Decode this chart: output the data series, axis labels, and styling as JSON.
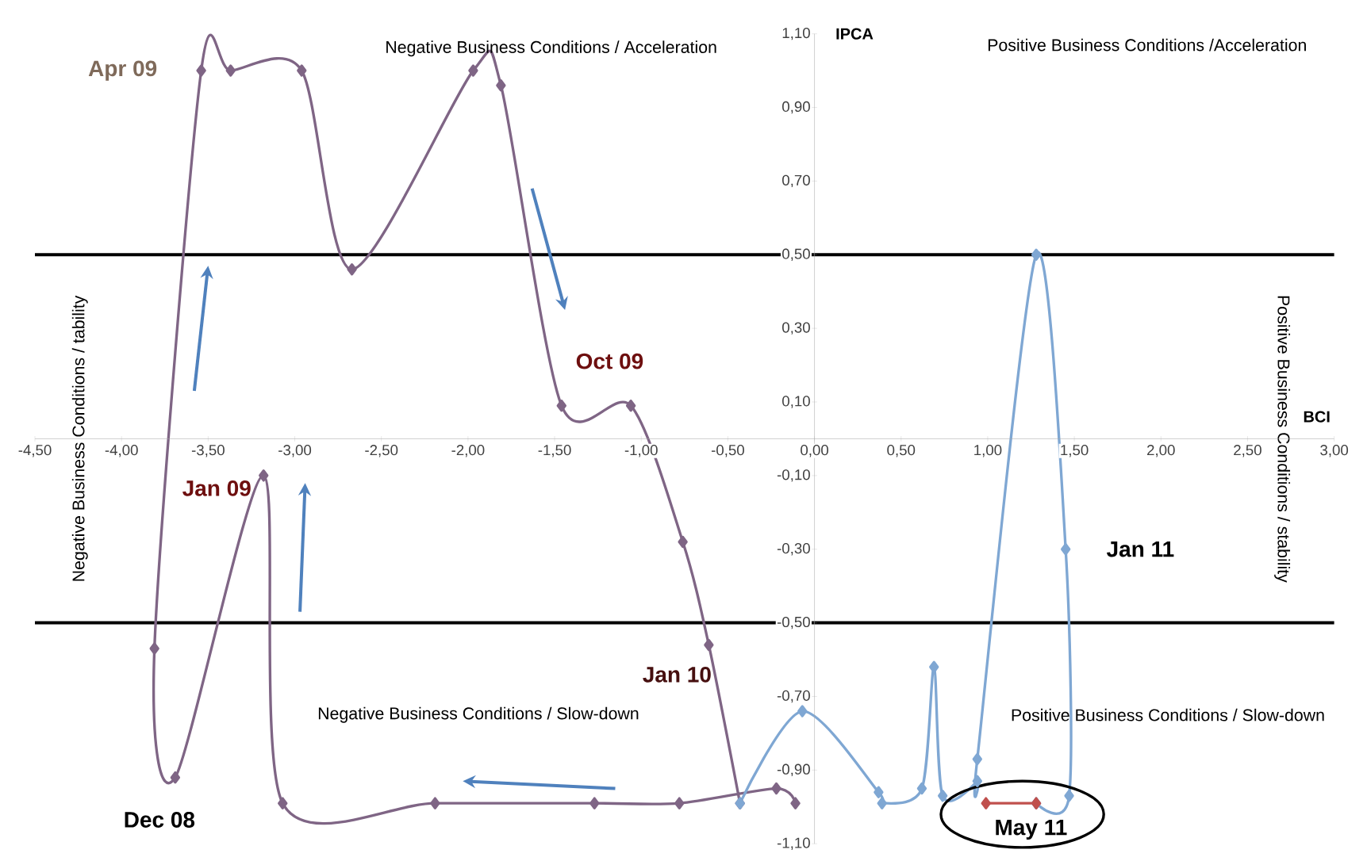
{
  "chart_data": {
    "type": "line",
    "xlabel": "BCI",
    "ylabel": "IPCA",
    "series": [
      {
        "color": "#7f6585",
        "x": [
          -0.11,
          -0.22,
          -0.78,
          -1.27,
          -2.19,
          -3.07,
          -3.18,
          -3.69,
          -3.81,
          -3.54,
          -3.37,
          -2.96,
          -2.67,
          -1.97,
          -1.81,
          -1.46,
          -1.06,
          -0.76,
          -0.61,
          -0.43
        ],
        "values": [
          -0.99,
          -0.95,
          -0.99,
          -0.99,
          -0.99,
          -0.99,
          -0.1,
          -0.92,
          -0.57,
          1.0,
          1.0,
          1.0,
          0.46,
          1.0,
          0.96,
          0.09,
          0.09,
          -0.28,
          -0.56,
          -0.99
        ]
      },
      {
        "color": "#7fa7d3",
        "x": [
          -0.43,
          -0.07,
          0.37,
          0.39,
          0.62,
          0.69,
          0.74,
          0.94,
          0.94,
          1.28,
          1.45,
          1.47,
          1.28
        ],
        "values": [
          -0.99,
          -0.74,
          -0.96,
          -0.99,
          -0.95,
          -0.62,
          -0.97,
          -0.93,
          -0.87,
          0.5,
          -0.3,
          -0.97,
          -0.99
        ]
      },
      {
        "color": "#c0504d",
        "x": [
          0.99,
          1.28
        ],
        "values": [
          -0.99,
          -0.99
        ]
      }
    ],
    "marker": "diamond",
    "grid": false,
    "xlim": [
      -4.5,
      3.0
    ],
    "ylim": [
      -1.1,
      1.1
    ],
    "xticks": [
      {
        "value": -4.5,
        "label": "-4,50"
      },
      {
        "value": -4.0,
        "label": "-4,00"
      },
      {
        "value": -3.5,
        "label": "-3,50"
      },
      {
        "value": -3.0,
        "label": "-3,00"
      },
      {
        "value": -2.5,
        "label": "-2,50"
      },
      {
        "value": -2.0,
        "label": "-2,00"
      },
      {
        "value": -1.5,
        "label": "-1,50"
      },
      {
        "value": -1.0,
        "label": "-1,00"
      },
      {
        "value": -0.5,
        "label": "-0,50"
      },
      {
        "value": 0.0,
        "label": "0,00"
      },
      {
        "value": 0.5,
        "label": "0,50"
      },
      {
        "value": 1.0,
        "label": "1,00"
      },
      {
        "value": 1.5,
        "label": "1,50"
      },
      {
        "value": 2.0,
        "label": "2,00"
      },
      {
        "value": 2.5,
        "label": "2,50"
      },
      {
        "value": 3.0,
        "label": "3,00"
      }
    ],
    "yticks": [
      {
        "value": -1.1,
        "label": "-1,10"
      },
      {
        "value": -0.9,
        "label": "-0,90"
      },
      {
        "value": -0.7,
        "label": "-0,70"
      },
      {
        "value": -0.5,
        "label": "-0,50"
      },
      {
        "value": -0.3,
        "label": "-0,30"
      },
      {
        "value": -0.1,
        "label": "-0,10"
      },
      {
        "value": 0.1,
        "label": "0,10"
      },
      {
        "value": 0.3,
        "label": "0,30"
      },
      {
        "value": 0.5,
        "label": "0,50"
      },
      {
        "value": 0.7,
        "label": "0,70"
      },
      {
        "value": 0.9,
        "label": "0,90"
      },
      {
        "value": 1.1,
        "label": "1,10"
      }
    ],
    "ref_lines": [
      {
        "axis": "y",
        "value": 0.5,
        "color": "#000000"
      },
      {
        "axis": "y",
        "value": -0.5,
        "color": "#000000"
      }
    ],
    "annotations": [
      "Negative Business Conditions  / Acceleration",
      "Positive Business Conditions /Acceleration",
      "Negative Business Conditions / tability",
      "Positive Business Conditions / stability",
      "Negative Business Conditions /  Slow-down",
      "Positive Business Conditions  / Slow-down",
      {
        "text": "Apr 09",
        "x": -3.54,
        "y": 1.0
      },
      {
        "text": "Jan 09",
        "x": -3.18,
        "y": -0.1
      },
      {
        "text": "Oct 09",
        "x": -1.06,
        "y": 0.09
      },
      {
        "text": "Jan 10",
        "x": -0.61,
        "y": -0.56
      },
      {
        "text": "Dec 08",
        "x": -3.69,
        "y": -0.92
      },
      {
        "text": "Jan 11",
        "x": 1.45,
        "y": -0.3
      },
      {
        "text": "May 11",
        "x": 1.28,
        "y": -0.99
      }
    ]
  }
}
